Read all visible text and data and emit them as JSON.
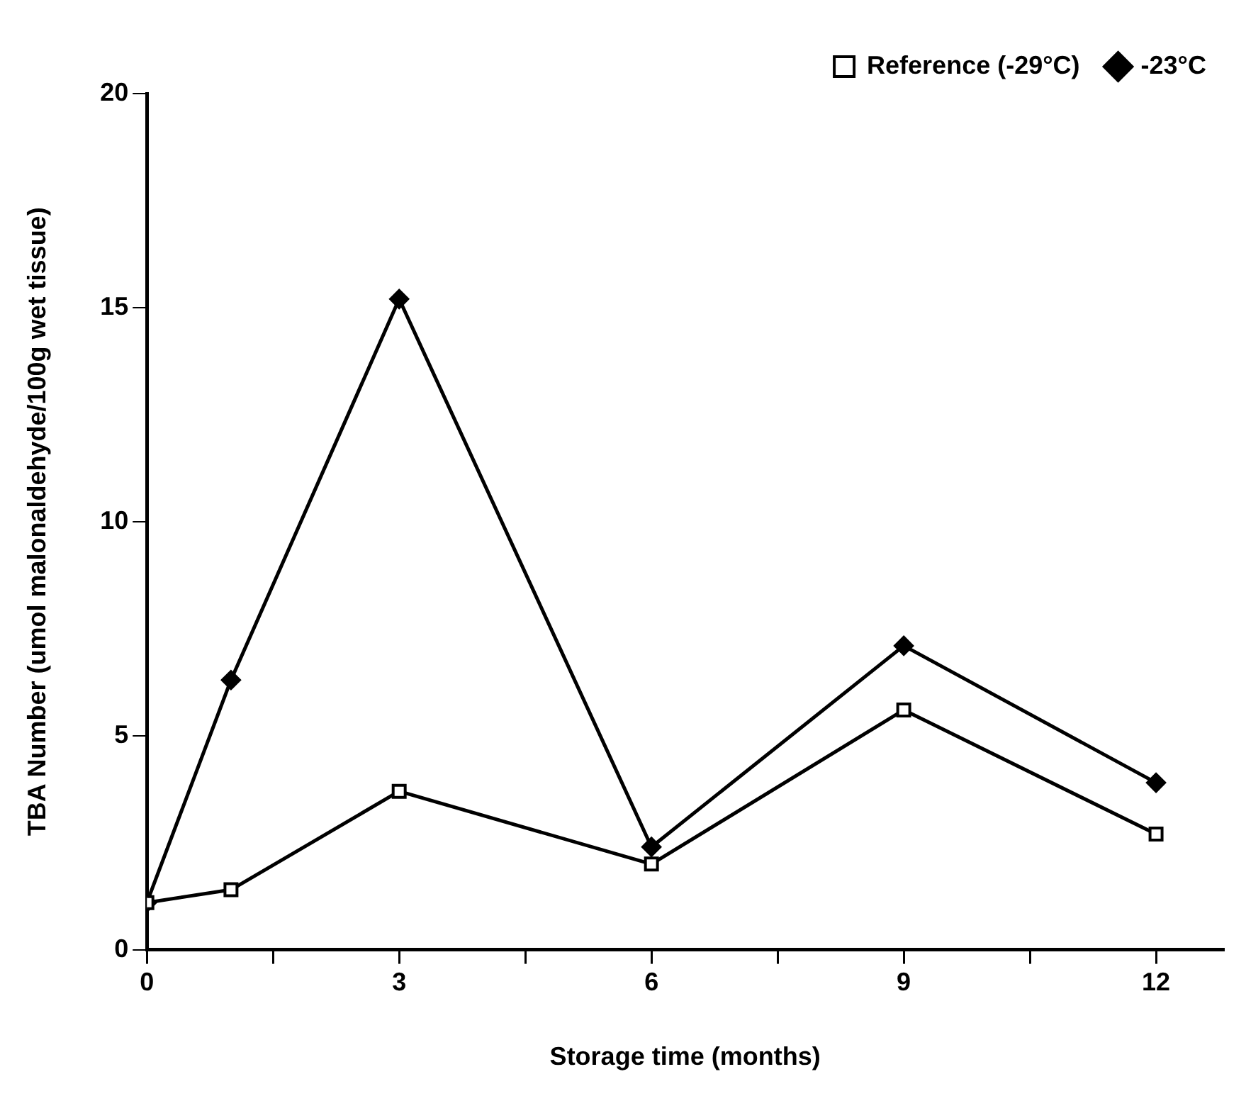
{
  "chart_data": {
    "type": "line",
    "xlabel": "Storage time (months)",
    "ylabel": "TBA Number (umol malonaldehyde/100g wet tissue)",
    "x": [
      0,
      1,
      3,
      6,
      9,
      12
    ],
    "series": [
      {
        "name": "Reference (-29°C)",
        "color": "#000000",
        "marker": "square",
        "values": [
          1.1,
          1.4,
          3.7,
          2.0,
          5.6,
          2.7
        ]
      },
      {
        "name": "-23°C",
        "color": "#000000",
        "marker": "diamond",
        "values": [
          1.1,
          6.3,
          15.2,
          2.4,
          7.1,
          3.9
        ]
      }
    ],
    "xlim": [
      0,
      12.8
    ],
    "xticks": [
      0,
      {
        "value": 1.5,
        "label": null
      },
      3,
      {
        "value": 4.5,
        "label": null
      },
      6,
      {
        "value": 7.5,
        "label": null
      },
      9,
      {
        "value": 10.5,
        "label": null
      },
      12
    ],
    "ylim": [
      0,
      20
    ],
    "yticks": [
      0,
      5,
      10,
      15,
      20
    ],
    "grid": false,
    "legend": "top right",
    "line_style": "solid"
  }
}
